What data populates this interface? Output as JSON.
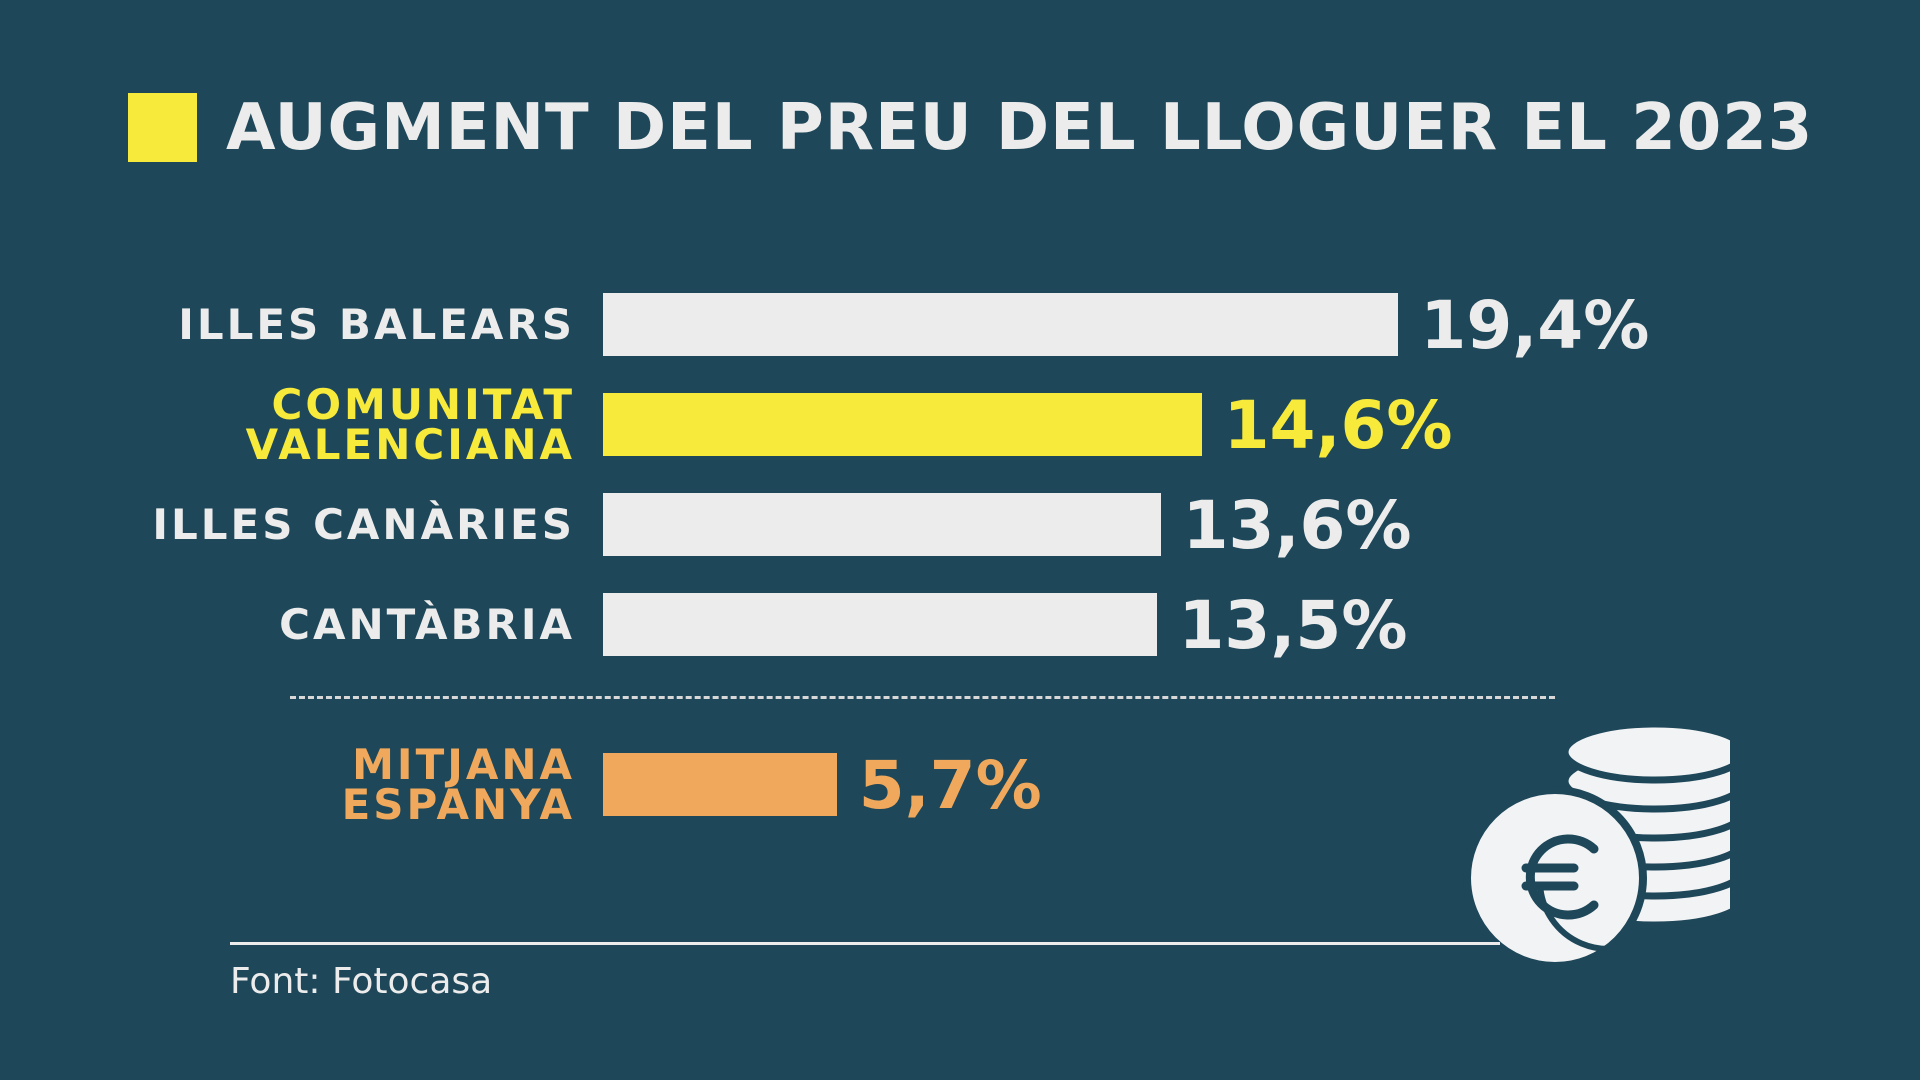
{
  "title": "AUGMENT DEL PREU DEL LLOGUER EL 2023",
  "source": "Font: Fotocasa",
  "colors": {
    "background": "#1e4759",
    "default_bar": "#ececec",
    "highlight": "#f7ea3a",
    "average": "#f0a95c"
  },
  "icon": "euro-coins-icon",
  "chart_data": {
    "type": "bar",
    "orientation": "horizontal",
    "unit": "%",
    "categories": [
      "ILLES BALEARS",
      "COMUNITAT\nVALENCIANA",
      "ILLES CANÀRIES",
      "CANTÀBRIA",
      "MITJANA\nESPANYA"
    ],
    "values": [
      19.4,
      14.6,
      13.6,
      13.5,
      5.7
    ],
    "value_labels": [
      "19,4%",
      "14,6%",
      "13,6%",
      "13,5%",
      "5,7%"
    ],
    "bar_colors": [
      "#ececec",
      "#f7ea3a",
      "#ececec",
      "#ececec",
      "#f0a95c"
    ],
    "label_colors": [
      "#ececec",
      "#f7ea3a",
      "#ececec",
      "#ececec",
      "#f0a95c"
    ]
  }
}
